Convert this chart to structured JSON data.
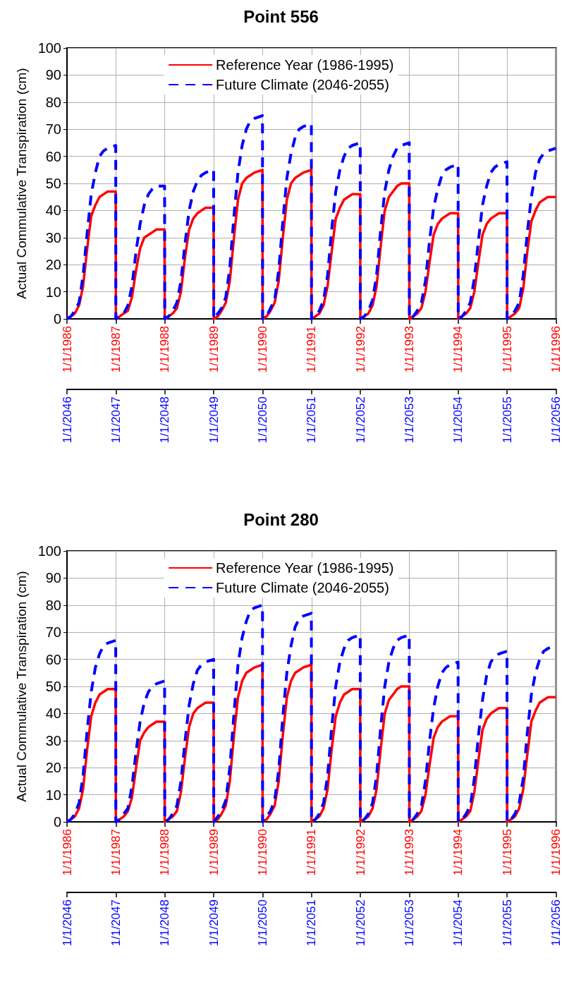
{
  "chart_data": [
    {
      "type": "line",
      "title": "Point 556",
      "ylabel": "Actual Commulative Transpiration (cm)",
      "x": [
        "1986-01-01",
        "1986-02-01",
        "1986-03-01",
        "1986-04-01",
        "1986-05-01",
        "1986-06-01",
        "1986-07-01",
        "1986-08-01",
        "1986-09-01",
        "1986-10-01",
        "1986-11-01",
        "1986-12-31",
        "1987-01-01",
        "1987-02-01",
        "1987-03-01",
        "1987-04-01",
        "1987-05-01",
        "1987-06-01",
        "1987-07-01",
        "1987-08-01",
        "1987-09-01",
        "1987-10-01",
        "1987-11-01",
        "1987-12-31",
        "1988-01-01",
        "1988-02-01",
        "1988-03-01",
        "1988-04-01",
        "1988-05-01",
        "1988-06-01",
        "1988-07-01",
        "1988-08-01",
        "1988-09-01",
        "1988-10-01",
        "1988-11-01",
        "1988-12-31",
        "1989-01-01",
        "1989-02-01",
        "1989-03-01",
        "1989-04-01",
        "1989-05-01",
        "1989-06-01",
        "1989-07-01",
        "1989-08-01",
        "1989-09-01",
        "1989-10-01",
        "1989-11-01",
        "1989-12-31",
        "1990-01-01",
        "1990-02-01",
        "1990-03-01",
        "1990-04-01",
        "1990-05-01",
        "1990-06-01",
        "1990-07-01",
        "1990-08-01",
        "1990-09-01",
        "1990-10-01",
        "1990-11-01",
        "1990-12-31",
        "1991-01-01",
        "1991-02-01",
        "1991-03-01",
        "1991-04-01",
        "1991-05-01",
        "1991-06-01",
        "1991-07-01",
        "1991-08-01",
        "1991-09-01",
        "1991-10-01",
        "1991-11-01",
        "1991-12-31",
        "1992-01-01",
        "1992-02-01",
        "1992-03-01",
        "1992-04-01",
        "1992-05-01",
        "1992-06-01",
        "1992-07-01",
        "1992-08-01",
        "1992-09-01",
        "1992-10-01",
        "1992-11-01",
        "1992-12-31",
        "1993-01-01",
        "1993-02-01",
        "1993-03-01",
        "1993-04-01",
        "1993-05-01",
        "1993-06-01",
        "1993-07-01",
        "1993-08-01",
        "1993-09-01",
        "1993-10-01",
        "1993-11-01",
        "1993-12-31",
        "1994-01-01",
        "1994-02-01",
        "1994-03-01",
        "1994-04-01",
        "1994-05-01",
        "1994-06-01",
        "1994-07-01",
        "1994-08-01",
        "1994-09-01",
        "1994-10-01",
        "1994-11-01",
        "1994-12-31",
        "1995-01-01",
        "1995-02-01",
        "1995-03-01",
        "1995-04-01",
        "1995-05-01",
        "1995-06-01",
        "1995-07-01",
        "1995-08-01",
        "1995-09-01",
        "1995-10-01",
        "1995-11-01",
        "1995-12-31"
      ],
      "xlim": [
        "1986-01-01",
        "1996-01-01"
      ],
      "xticks": [
        {
          "value": "1986-01-01",
          "label": "1/1/1986"
        },
        {
          "value": "1987-01-01",
          "label": "1/1/1987"
        },
        {
          "value": "1988-01-01",
          "label": "1/1/1988"
        },
        {
          "value": "1989-01-01",
          "label": "1/1/1989"
        },
        {
          "value": "1990-01-01",
          "label": "1/1/1990"
        },
        {
          "value": "1991-01-01",
          "label": "1/1/1991"
        },
        {
          "value": "1992-01-01",
          "label": "1/1/1992"
        },
        {
          "value": "1993-01-01",
          "label": "1/1/1993"
        },
        {
          "value": "1994-01-01",
          "label": "1/1/1994"
        },
        {
          "value": "1995-01-01",
          "label": "1/1/1995"
        },
        {
          "value": "1996-01-01",
          "label": "1/1/1996"
        }
      ],
      "x2lim": [
        "2046-01-01",
        "2056-01-01"
      ],
      "x2ticks": [
        {
          "value": "2046-01-01",
          "label": "1/1/2046"
        },
        {
          "value": "2047-01-01",
          "label": "1/1/2047"
        },
        {
          "value": "2048-01-01",
          "label": "1/1/2048"
        },
        {
          "value": "2049-01-01",
          "label": "1/1/2049"
        },
        {
          "value": "2050-01-01",
          "label": "1/1/2050"
        },
        {
          "value": "2051-01-01",
          "label": "1/1/2051"
        },
        {
          "value": "2052-01-01",
          "label": "1/1/2052"
        },
        {
          "value": "2053-01-01",
          "label": "1/1/2053"
        },
        {
          "value": "2054-01-01",
          "label": "1/1/2054"
        },
        {
          "value": "2055-01-01",
          "label": "1/1/2055"
        },
        {
          "value": "2056-01-01",
          "label": "1/1/2056"
        }
      ],
      "ylim": [
        0,
        100
      ],
      "yticks": [
        0,
        10,
        20,
        30,
        40,
        50,
        60,
        70,
        80,
        90,
        100
      ],
      "grid": true,
      "legend": "top",
      "marker": "none",
      "series": [
        {
          "name": "Reference Year (1986-1995)",
          "color": "#ff0000",
          "line_style": "solid",
          "values": [
            0,
            1,
            2,
            5,
            12,
            26,
            38,
            42,
            45,
            46,
            47,
            47,
            0,
            1,
            2,
            3,
            8,
            18,
            26,
            30,
            31,
            32,
            33,
            33,
            0,
            1,
            2,
            4,
            10,
            23,
            33,
            37,
            39,
            40,
            41,
            41,
            0,
            1,
            3,
            6,
            14,
            30,
            44,
            50,
            52,
            53,
            54,
            55,
            0,
            1,
            3,
            6,
            14,
            30,
            44,
            50,
            52,
            53,
            54,
            55,
            0,
            1,
            2,
            5,
            12,
            25,
            37,
            41,
            44,
            45,
            46,
            46,
            0,
            1,
            2,
            5,
            12,
            27,
            40,
            45,
            47,
            49,
            50,
            50,
            0,
            1,
            2,
            4,
            10,
            21,
            31,
            35,
            37,
            38,
            39,
            39,
            0,
            1,
            2,
            4,
            10,
            21,
            31,
            35,
            37,
            38,
            39,
            39,
            0,
            1,
            2,
            4,
            11,
            25,
            36,
            40,
            43,
            44,
            45,
            45
          ]
        },
        {
          "name": "Future Climate (2046-2055)",
          "color": "#0000ff",
          "line_style": "dashed",
          "axis": "x2",
          "x": [
            "2046-01-01",
            "2046-02-01",
            "2046-03-01",
            "2046-04-01",
            "2046-05-01",
            "2046-06-01",
            "2046-07-01",
            "2046-08-01",
            "2046-09-01",
            "2046-10-01",
            "2046-11-01",
            "2046-12-31",
            "2047-01-01",
            "2047-02-01",
            "2047-03-01",
            "2047-04-01",
            "2047-05-01",
            "2047-06-01",
            "2047-07-01",
            "2047-08-01",
            "2047-09-01",
            "2047-10-01",
            "2047-11-01",
            "2047-12-31",
            "2048-01-01",
            "2048-02-01",
            "2048-03-01",
            "2048-04-01",
            "2048-05-01",
            "2048-06-01",
            "2048-07-01",
            "2048-08-01",
            "2048-09-01",
            "2048-10-01",
            "2048-11-01",
            "2048-12-31",
            "2049-01-01",
            "2049-02-01",
            "2049-03-01",
            "2049-04-01",
            "2049-05-01",
            "2049-06-01",
            "2049-07-01",
            "2049-08-01",
            "2049-09-01",
            "2049-10-01",
            "2049-11-01",
            "2049-12-31",
            "2050-01-01",
            "2050-02-01",
            "2050-03-01",
            "2050-04-01",
            "2050-05-01",
            "2050-06-01",
            "2050-07-01",
            "2050-08-01",
            "2050-09-01",
            "2050-10-01",
            "2050-11-01",
            "2050-12-31",
            "2051-01-01",
            "2051-02-01",
            "2051-03-01",
            "2051-04-01",
            "2051-05-01",
            "2051-06-01",
            "2051-07-01",
            "2051-08-01",
            "2051-09-01",
            "2051-10-01",
            "2051-11-01",
            "2051-12-31",
            "2052-01-01",
            "2052-02-01",
            "2052-03-01",
            "2052-04-01",
            "2052-05-01",
            "2052-06-01",
            "2052-07-01",
            "2052-08-01",
            "2052-09-01",
            "2052-10-01",
            "2052-11-01",
            "2052-12-31",
            "2053-01-01",
            "2053-02-01",
            "2053-03-01",
            "2053-04-01",
            "2053-05-01",
            "2053-06-01",
            "2053-07-01",
            "2053-08-01",
            "2053-09-01",
            "2053-10-01",
            "2053-11-01",
            "2053-12-31",
            "2054-01-01",
            "2054-02-01",
            "2054-03-01",
            "2054-04-01",
            "2054-05-01",
            "2054-06-01",
            "2054-07-01",
            "2054-08-01",
            "2054-09-01",
            "2054-10-01",
            "2054-11-01",
            "2054-12-31",
            "2055-01-01",
            "2055-02-01",
            "2055-03-01",
            "2055-04-01",
            "2055-05-01",
            "2055-06-01",
            "2055-07-01",
            "2055-08-01",
            "2055-09-01",
            "2055-10-01",
            "2055-11-01",
            "2055-12-31"
          ],
          "values": [
            0,
            1,
            3,
            6,
            16,
            32,
            46,
            54,
            60,
            62,
            63,
            64,
            0,
            1,
            2,
            5,
            12,
            25,
            35,
            42,
            46,
            48,
            49,
            49,
            0,
            1,
            3,
            6,
            14,
            28,
            40,
            47,
            51,
            53,
            54,
            55,
            0,
            2,
            4,
            8,
            19,
            38,
            54,
            64,
            70,
            73,
            74,
            75,
            0,
            1,
            4,
            7,
            18,
            36,
            52,
            61,
            67,
            70,
            71,
            72,
            0,
            1,
            3,
            7,
            16,
            33,
            47,
            55,
            60,
            63,
            64,
            65,
            0,
            1,
            3,
            7,
            16,
            33,
            47,
            55,
            60,
            63,
            64,
            65,
            0,
            1,
            3,
            6,
            14,
            29,
            41,
            48,
            53,
            55,
            56,
            57,
            0,
            1,
            3,
            6,
            15,
            29,
            42,
            49,
            54,
            56,
            57,
            58,
            0,
            1,
            3,
            6,
            16,
            32,
            45,
            54,
            59,
            61,
            62,
            63
          ]
        }
      ]
    },
    {
      "type": "line",
      "title": "Point 280",
      "ylabel": "Actual Commulative Transpiration (cm)",
      "x": [
        "1986-01-01",
        "1986-02-01",
        "1986-03-01",
        "1986-04-01",
        "1986-05-01",
        "1986-06-01",
        "1986-07-01",
        "1986-08-01",
        "1986-09-01",
        "1986-10-01",
        "1986-11-01",
        "1986-12-31",
        "1987-01-01",
        "1987-02-01",
        "1987-03-01",
        "1987-04-01",
        "1987-05-01",
        "1987-06-01",
        "1987-07-01",
        "1987-08-01",
        "1987-09-01",
        "1987-10-01",
        "1987-11-01",
        "1987-12-31",
        "1988-01-01",
        "1988-02-01",
        "1988-03-01",
        "1988-04-01",
        "1988-05-01",
        "1988-06-01",
        "1988-07-01",
        "1988-08-01",
        "1988-09-01",
        "1988-10-01",
        "1988-11-01",
        "1988-12-31",
        "1989-01-01",
        "1989-02-01",
        "1989-03-01",
        "1989-04-01",
        "1989-05-01",
        "1989-06-01",
        "1989-07-01",
        "1989-08-01",
        "1989-09-01",
        "1989-10-01",
        "1989-11-01",
        "1989-12-31",
        "1990-01-01",
        "1990-02-01",
        "1990-03-01",
        "1990-04-01",
        "1990-05-01",
        "1990-06-01",
        "1990-07-01",
        "1990-08-01",
        "1990-09-01",
        "1990-10-01",
        "1990-11-01",
        "1990-12-31",
        "1991-01-01",
        "1991-02-01",
        "1991-03-01",
        "1991-04-01",
        "1991-05-01",
        "1991-06-01",
        "1991-07-01",
        "1991-08-01",
        "1991-09-01",
        "1991-10-01",
        "1991-11-01",
        "1991-12-31",
        "1992-01-01",
        "1992-02-01",
        "1992-03-01",
        "1992-04-01",
        "1992-05-01",
        "1992-06-01",
        "1992-07-01",
        "1992-08-01",
        "1992-09-01",
        "1992-10-01",
        "1992-11-01",
        "1992-12-31",
        "1993-01-01",
        "1993-02-01",
        "1993-03-01",
        "1993-04-01",
        "1993-05-01",
        "1993-06-01",
        "1993-07-01",
        "1993-08-01",
        "1993-09-01",
        "1993-10-01",
        "1993-11-01",
        "1993-12-31",
        "1994-01-01",
        "1994-02-01",
        "1994-03-01",
        "1994-04-01",
        "1994-05-01",
        "1994-06-01",
        "1994-07-01",
        "1994-08-01",
        "1994-09-01",
        "1994-10-01",
        "1994-11-01",
        "1994-12-31",
        "1995-01-01",
        "1995-02-01",
        "1995-03-01",
        "1995-04-01",
        "1995-05-01",
        "1995-06-01",
        "1995-07-01",
        "1995-08-01",
        "1995-09-01",
        "1995-10-01",
        "1995-11-01",
        "1995-12-31"
      ],
      "xlim": [
        "1986-01-01",
        "1996-01-01"
      ],
      "xticks": [
        {
          "value": "1986-01-01",
          "label": "1/1/1986"
        },
        {
          "value": "1987-01-01",
          "label": "1/1/1987"
        },
        {
          "value": "1988-01-01",
          "label": "1/1/1988"
        },
        {
          "value": "1989-01-01",
          "label": "1/1/1989"
        },
        {
          "value": "1990-01-01",
          "label": "1/1/1990"
        },
        {
          "value": "1991-01-01",
          "label": "1/1/1991"
        },
        {
          "value": "1992-01-01",
          "label": "1/1/1992"
        },
        {
          "value": "1993-01-01",
          "label": "1/1/1993"
        },
        {
          "value": "1994-01-01",
          "label": "1/1/1994"
        },
        {
          "value": "1995-01-01",
          "label": "1/1/1995"
        },
        {
          "value": "1996-01-01",
          "label": "1/1/1996"
        }
      ],
      "x2lim": [
        "2046-01-01",
        "2056-01-01"
      ],
      "x2ticks": [
        {
          "value": "2046-01-01",
          "label": "1/1/2046"
        },
        {
          "value": "2047-01-01",
          "label": "1/1/2047"
        },
        {
          "value": "2048-01-01",
          "label": "1/1/2048"
        },
        {
          "value": "2049-01-01",
          "label": "1/1/2049"
        },
        {
          "value": "2050-01-01",
          "label": "1/1/2050"
        },
        {
          "value": "2051-01-01",
          "label": "1/1/2051"
        },
        {
          "value": "2052-01-01",
          "label": "1/1/2052"
        },
        {
          "value": "2053-01-01",
          "label": "1/1/2053"
        },
        {
          "value": "2054-01-01",
          "label": "1/1/2054"
        },
        {
          "value": "2055-01-01",
          "label": "1/1/2055"
        },
        {
          "value": "2056-01-01",
          "label": "1/1/2056"
        }
      ],
      "ylim": [
        0,
        100
      ],
      "yticks": [
        0,
        10,
        20,
        30,
        40,
        50,
        60,
        70,
        80,
        90,
        100
      ],
      "grid": true,
      "legend": "top",
      "marker": "none",
      "series": [
        {
          "name": "Reference Year (1986-1995)",
          "color": "#ff0000",
          "line_style": "solid",
          "values": [
            0,
            1,
            2,
            5,
            12,
            27,
            39,
            44,
            47,
            48,
            49,
            49,
            0,
            1,
            2,
            4,
            9,
            20,
            30,
            33,
            35,
            36,
            37,
            37,
            0,
            1,
            2,
            4,
            11,
            24,
            35,
            40,
            42,
            43,
            44,
            44,
            0,
            1,
            3,
            6,
            15,
            32,
            46,
            52,
            55,
            56,
            57,
            58,
            0,
            1,
            3,
            6,
            15,
            32,
            46,
            52,
            55,
            56,
            57,
            58,
            0,
            1,
            2,
            5,
            12,
            27,
            39,
            44,
            47,
            48,
            49,
            49,
            0,
            1,
            2,
            5,
            12,
            27,
            40,
            45,
            47,
            49,
            50,
            50,
            0,
            1,
            2,
            4,
            10,
            21,
            31,
            35,
            37,
            38,
            39,
            39,
            0,
            1,
            2,
            4,
            11,
            23,
            34,
            38,
            40,
            41,
            42,
            42,
            0,
            1,
            2,
            5,
            12,
            25,
            37,
            41,
            44,
            45,
            46,
            46
          ]
        },
        {
          "name": "Future Climate (2046-2055)",
          "color": "#0000ff",
          "line_style": "dashed",
          "axis": "x2",
          "x": [
            "2046-01-01",
            "2046-02-01",
            "2046-03-01",
            "2046-04-01",
            "2046-05-01",
            "2046-06-01",
            "2046-07-01",
            "2046-08-01",
            "2046-09-01",
            "2046-10-01",
            "2046-11-01",
            "2046-12-31",
            "2047-01-01",
            "2047-02-01",
            "2047-03-01",
            "2047-04-01",
            "2047-05-01",
            "2047-06-01",
            "2047-07-01",
            "2047-08-01",
            "2047-09-01",
            "2047-10-01",
            "2047-11-01",
            "2047-12-31",
            "2048-01-01",
            "2048-02-01",
            "2048-03-01",
            "2048-04-01",
            "2048-05-01",
            "2048-06-01",
            "2048-07-01",
            "2048-08-01",
            "2048-09-01",
            "2048-10-01",
            "2048-11-01",
            "2048-12-31",
            "2049-01-01",
            "2049-02-01",
            "2049-03-01",
            "2049-04-01",
            "2049-05-01",
            "2049-06-01",
            "2049-07-01",
            "2049-08-01",
            "2049-09-01",
            "2049-10-01",
            "2049-11-01",
            "2049-12-31",
            "2050-01-01",
            "2050-02-01",
            "2050-03-01",
            "2050-04-01",
            "2050-05-01",
            "2050-06-01",
            "2050-07-01",
            "2050-08-01",
            "2050-09-01",
            "2050-10-01",
            "2050-11-01",
            "2050-12-31",
            "2051-01-01",
            "2051-02-01",
            "2051-03-01",
            "2051-04-01",
            "2051-05-01",
            "2051-06-01",
            "2051-07-01",
            "2051-08-01",
            "2051-09-01",
            "2051-10-01",
            "2051-11-01",
            "2051-12-31",
            "2052-01-01",
            "2052-02-01",
            "2052-03-01",
            "2052-04-01",
            "2052-05-01",
            "2052-06-01",
            "2052-07-01",
            "2052-08-01",
            "2052-09-01",
            "2052-10-01",
            "2052-11-01",
            "2052-12-31",
            "2053-01-01",
            "2053-02-01",
            "2053-03-01",
            "2053-04-01",
            "2053-05-01",
            "2053-06-01",
            "2053-07-01",
            "2053-08-01",
            "2053-09-01",
            "2053-10-01",
            "2053-11-01",
            "2053-12-31",
            "2054-01-01",
            "2054-02-01",
            "2054-03-01",
            "2054-04-01",
            "2054-05-01",
            "2054-06-01",
            "2054-07-01",
            "2054-08-01",
            "2054-09-01",
            "2054-10-01",
            "2054-11-01",
            "2054-12-31",
            "2055-01-01",
            "2055-02-01",
            "2055-03-01",
            "2055-04-01",
            "2055-05-01",
            "2055-06-01",
            "2055-07-01",
            "2055-08-01",
            "2055-09-01",
            "2055-10-01",
            "2055-11-01",
            "2055-12-31"
          ],
          "values": [
            0,
            1,
            3,
            7,
            17,
            34,
            48,
            57,
            62,
            65,
            66,
            67,
            0,
            1,
            3,
            5,
            13,
            26,
            37,
            44,
            48,
            50,
            51,
            52,
            0,
            1,
            3,
            6,
            15,
            30,
            43,
            51,
            56,
            58,
            59,
            60,
            0,
            2,
            4,
            8,
            20,
            40,
            58,
            68,
            74,
            78,
            79,
            80,
            0,
            2,
            4,
            8,
            19,
            39,
            55,
            65,
            72,
            75,
            76,
            77,
            0,
            1,
            3,
            7,
            17,
            35,
            50,
            59,
            64,
            67,
            68,
            69,
            0,
            1,
            3,
            7,
            17,
            35,
            50,
            59,
            64,
            67,
            68,
            69,
            0,
            1,
            3,
            6,
            15,
            30,
            42,
            50,
            55,
            57,
            58,
            59,
            0,
            1,
            3,
            6,
            16,
            32,
            45,
            54,
            59,
            61,
            62,
            63,
            0,
            1,
            3,
            7,
            16,
            33,
            47,
            55,
            60,
            63,
            64,
            65
          ]
        }
      ]
    }
  ]
}
